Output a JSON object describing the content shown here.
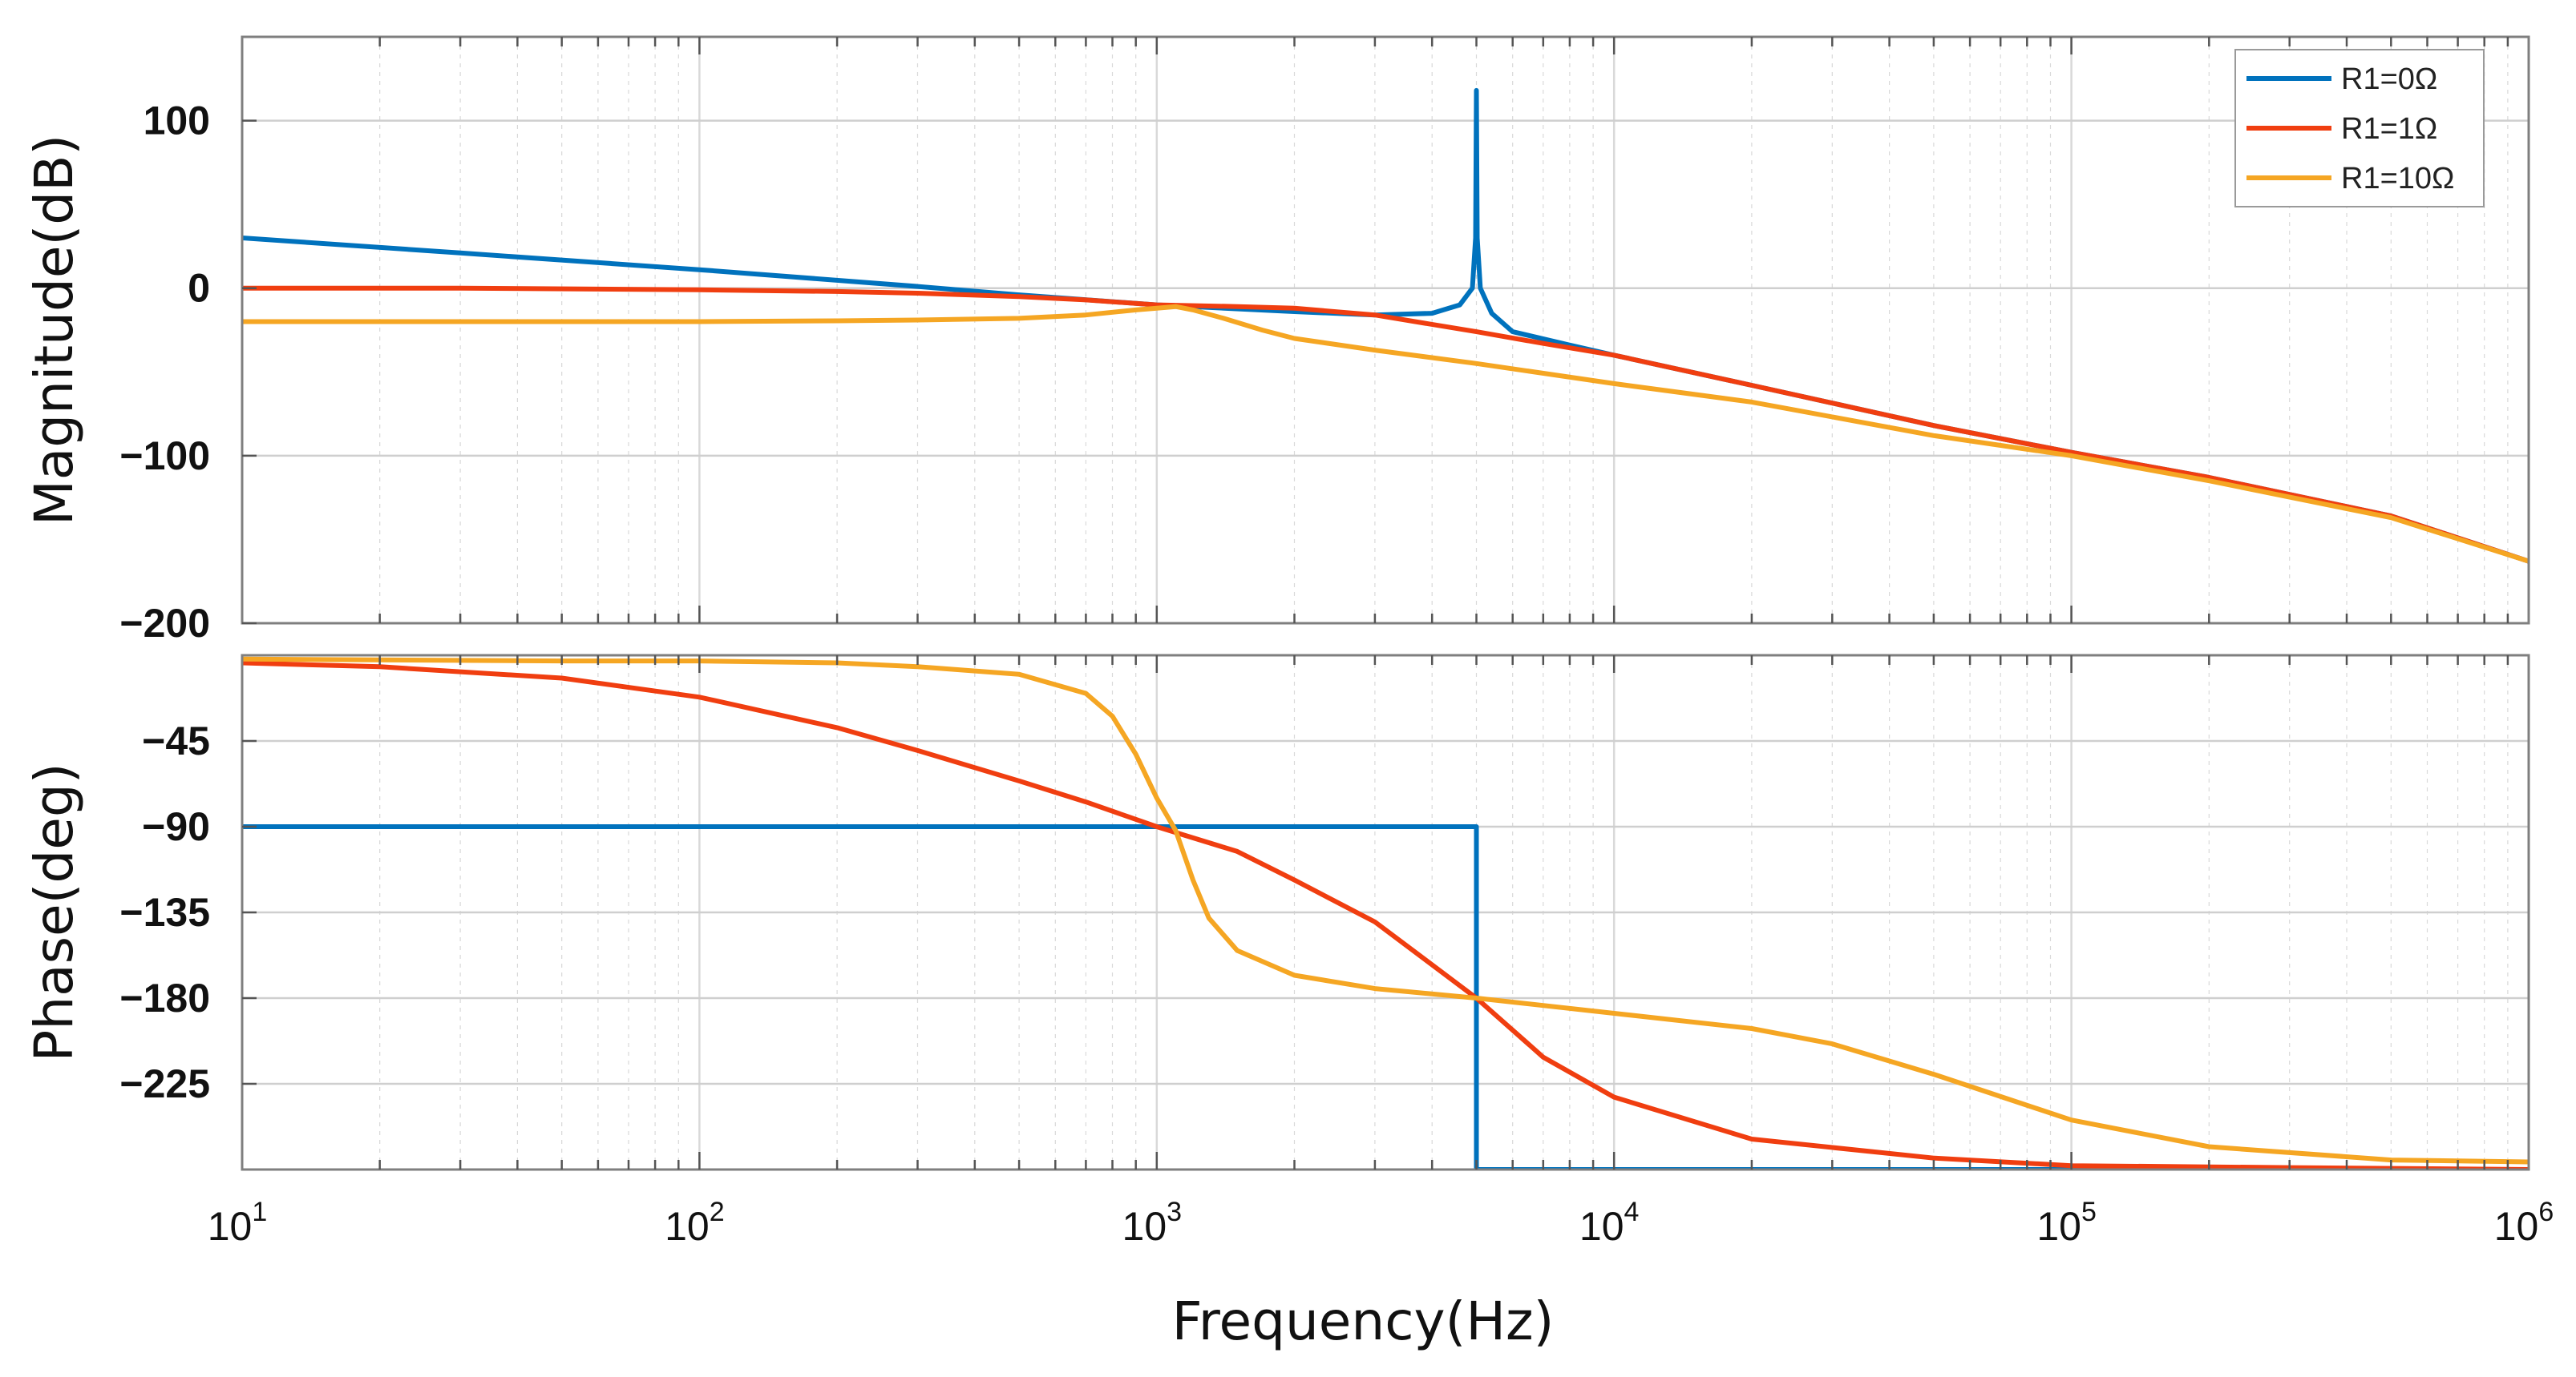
{
  "chart_data": {
    "type": "line",
    "title": "",
    "xlabel": "Frequency(Hz)",
    "x_scale": "log",
    "x_range": [
      10,
      1000000
    ],
    "x_ticks": [
      {
        "value": 10,
        "base": "10",
        "exp": "1"
      },
      {
        "value": 100,
        "base": "10",
        "exp": "2"
      },
      {
        "value": 1000,
        "base": "10",
        "exp": "3"
      },
      {
        "value": 10000,
        "base": "10",
        "exp": "4"
      },
      {
        "value": 100000,
        "base": "10",
        "exp": "5"
      },
      {
        "value": 1000000,
        "base": "10",
        "exp": "6"
      }
    ],
    "grid": true,
    "legend": {
      "location": "top-right",
      "entries": [
        "R1=0Ω",
        "R1=1Ω",
        "R1=10Ω"
      ]
    },
    "colors": {
      "R1=0Ω": "#0072BD",
      "R1=1Ω": "#F03E10",
      "R1=10Ω": "#F5A623",
      "axes": "#7f7f7f",
      "grid": "#d9d9d9"
    },
    "subplots": [
      {
        "name": "magnitude",
        "ylabel": "Magnitude(dB)",
        "ylim": [
          -200,
          150
        ],
        "y_ticks": [
          {
            "value": 100,
            "label": "100"
          },
          {
            "value": 0,
            "label": "0"
          },
          {
            "value": -100,
            "label": "−100"
          },
          {
            "value": -200,
            "label": "−200"
          }
        ],
        "series": [
          {
            "name": "R1=0Ω",
            "x": [
              10,
              30,
              100,
              300,
              500,
              1000,
              2000,
              3000,
              4000,
              4600,
              4900,
              4980,
              5000,
              5020,
              5100,
              5400,
              6000,
              8000,
              10000,
              20000,
              50000,
              100000,
              200000,
              500000,
              1000000
            ],
            "y": [
              30,
              21,
              11,
              1,
              -4,
              -10,
              -14,
              -16,
              -15,
              -10,
              0,
              30,
              118,
              30,
              0,
              -15,
              -26,
              -34,
              -40,
              -58,
              -82,
              -98,
              -113,
              -136,
              -163
            ]
          },
          {
            "name": "R1=1Ω",
            "x": [
              10,
              30,
              100,
              200,
              300,
              500,
              700,
              1000,
              1500,
              2000,
              3000,
              5000,
              7000,
              10000,
              20000,
              50000,
              100000,
              200000,
              500000,
              1000000
            ],
            "y": [
              0,
              0,
              -1,
              -2,
              -3,
              -5,
              -7,
              -10,
              -11,
              -12,
              -16,
              -26,
              -33,
              -40,
              -58,
              -82,
              -98,
              -113,
              -136,
              -163
            ]
          },
          {
            "name": "R1=10Ω",
            "x": [
              10,
              30,
              100,
              200,
              300,
              500,
              700,
              900,
              1000,
              1100,
              1200,
              1400,
              1700,
              2000,
              3000,
              5000,
              10000,
              20000,
              50000,
              100000,
              200000,
              500000,
              1000000
            ],
            "y": [
              -20,
              -20,
              -20,
              -19.5,
              -19,
              -18,
              -16,
              -13,
              -12,
              -11,
              -13,
              -18,
              -25,
              -30,
              -37,
              -45,
              -57,
              -68,
              -88,
              -100,
              -115,
              -137,
              -163
            ]
          }
        ]
      },
      {
        "name": "phase",
        "ylabel": "Phase(deg)",
        "ylim": [
          -270,
          0
        ],
        "y_ticks": [
          {
            "value": -45,
            "label": "−45"
          },
          {
            "value": -90,
            "label": "−90"
          },
          {
            "value": -135,
            "label": "−135"
          },
          {
            "value": -180,
            "label": "−180"
          },
          {
            "value": -225,
            "label": "−225"
          }
        ],
        "series": [
          {
            "name": "R1=0Ω",
            "x": [
              10,
              5000,
              5000,
              1000000
            ],
            "y": [
              -90,
              -90,
              -270,
              -270
            ]
          },
          {
            "name": "R1=1Ω",
            "x": [
              10,
              20,
              50,
              100,
              200,
              300,
              500,
              700,
              1000,
              1500,
              2000,
              3000,
              5000,
              7000,
              10000,
              20000,
              50000,
              100000,
              300000,
              1000000
            ],
            "y": [
              -4,
              -6,
              -12,
              -22,
              -38,
              -50,
              -66,
              -77,
              -90,
              -103,
              -118,
              -140,
              -180,
              -211,
              -232,
              -254,
              -264,
              -268,
              -269,
              -270
            ]
          },
          {
            "name": "R1=10Ω",
            "x": [
              10,
              50,
              100,
              200,
              300,
              500,
              700,
              800,
              900,
              1000,
              1100,
              1200,
              1300,
              1500,
              2000,
              3000,
              5000,
              10000,
              20000,
              30000,
              50000,
              100000,
              200000,
              500000,
              1000000
            ],
            "y": [
              -2,
              -3,
              -3,
              -4,
              -6,
              -10,
              -20,
              -32,
              -52,
              -75,
              -92,
              -118,
              -138,
              -155,
              -168,
              -175,
              -180,
              -188,
              -196,
              -204,
              -220,
              -244,
              -258,
              -265,
              -266
            ]
          }
        ]
      }
    ]
  }
}
